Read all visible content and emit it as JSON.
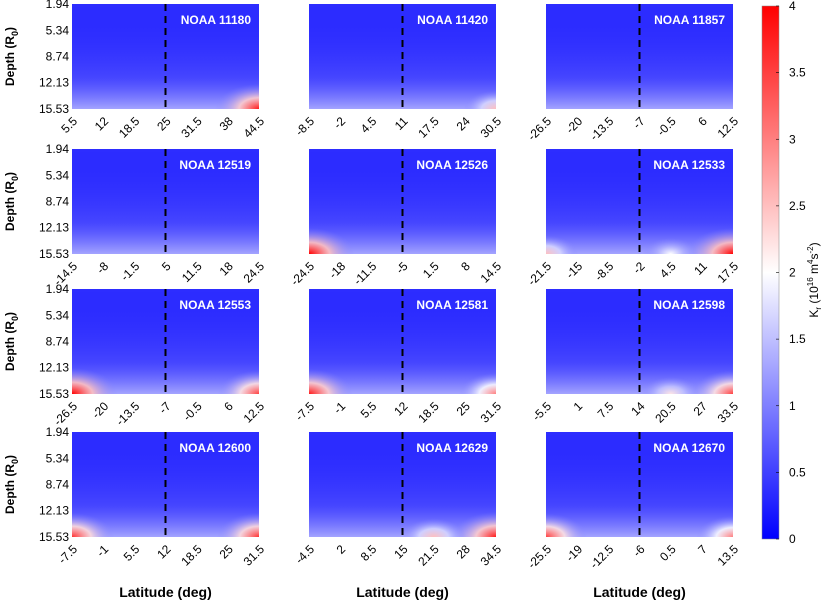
{
  "chart_data": {
    "type": "heatmap",
    "ylabel": "Depth (R",
    "ylabel_sub": "0",
    "ylabel_close": ")",
    "xlabel": "Latitude (deg)",
    "y_ticks": [
      "1.94",
      "5.34",
      "8.74",
      "12.13",
      "15.53"
    ],
    "colorbar": {
      "label": "K",
      "label_sub": "r",
      "label_units_open": " (10",
      "label_units_exp": "16",
      "label_units_mid": " m",
      "label_units_exp2": "4",
      "label_units_mid2": "s",
      "label_units_exp3": "-2",
      "label_units_close": ")",
      "range": [
        0,
        4
      ],
      "ticks": [
        "0",
        "0.5",
        "1",
        "1.5",
        "2",
        "2.5",
        "3",
        "3.5",
        "4"
      ],
      "colors": {
        "low": "#0000ff",
        "mid": "#ffffff",
        "high": "#ff0000"
      }
    },
    "panels": [
      {
        "title": "NOAA 11180",
        "x_ticks": [
          "5.5",
          "12",
          "18.5",
          "25",
          "31.5",
          "38",
          "44.5"
        ],
        "dashed_at": 25,
        "hotspots": [
          {
            "x": 44.5,
            "depth": 15.53,
            "value": 3.8
          }
        ]
      },
      {
        "title": "NOAA 11420",
        "x_ticks": [
          "-8.5",
          "-2",
          "4.5",
          "11",
          "17.5",
          "24",
          "30.5"
        ],
        "dashed_at": 11,
        "hotspots": [
          {
            "x": 30.5,
            "depth": 15.53,
            "value": 2.5
          }
        ]
      },
      {
        "title": "NOAA 11857",
        "x_ticks": [
          "-26.5",
          "-20",
          "-13.5",
          "-7",
          "-0.5",
          "6",
          "12.5"
        ],
        "dashed_at": -7,
        "hotspots": []
      },
      {
        "title": "NOAA 12519",
        "x_ticks": [
          "-14.5",
          "-8",
          "-1.5",
          "5",
          "11.5",
          "18",
          "24.5"
        ],
        "dashed_at": 5,
        "hotspots": []
      },
      {
        "title": "NOAA 12526",
        "x_ticks": [
          "-24.5",
          "-18",
          "-11.5",
          "-5",
          "1.5",
          "8",
          "14.5"
        ],
        "dashed_at": -5,
        "hotspots": [
          {
            "x": -24.5,
            "depth": 15.53,
            "value": 4.0
          }
        ]
      },
      {
        "title": "NOAA 12533",
        "x_ticks": [
          "-21.5",
          "-15",
          "-8.5",
          "-2",
          "4.5",
          "11",
          "17.5"
        ],
        "dashed_at": -2,
        "hotspots": [
          {
            "x": -21.5,
            "depth": 15.53,
            "value": 2.5
          },
          {
            "x": 17.5,
            "depth": 15.53,
            "value": 4.0
          },
          {
            "x": 4.5,
            "depth": 15.53,
            "value": 2.0
          }
        ]
      },
      {
        "title": "NOAA 12553",
        "x_ticks": [
          "-26.5",
          "-20",
          "-13.5",
          "-7",
          "-0.5",
          "6",
          "12.5"
        ],
        "dashed_at": -7,
        "hotspots": [
          {
            "x": -26.5,
            "depth": 15.53,
            "value": 4.0
          },
          {
            "x": 12.5,
            "depth": 15.53,
            "value": 3.5
          }
        ]
      },
      {
        "title": "NOAA 12581",
        "x_ticks": [
          "-7.5",
          "-1",
          "5.5",
          "12",
          "18.5",
          "25",
          "31.5"
        ],
        "dashed_at": 12,
        "hotspots": [
          {
            "x": -7.5,
            "depth": 15.53,
            "value": 3.8
          },
          {
            "x": 31.5,
            "depth": 15.53,
            "value": 3.0
          }
        ]
      },
      {
        "title": "NOAA 12598",
        "x_ticks": [
          "-5.5",
          "1",
          "7.5",
          "14",
          "20.5",
          "27",
          "33.5"
        ],
        "dashed_at": 14,
        "hotspots": [
          {
            "x": 33.5,
            "depth": 15.53,
            "value": 3.5
          },
          {
            "x": 20.5,
            "depth": 15.53,
            "value": 2.2
          }
        ]
      },
      {
        "title": "NOAA 12600",
        "x_ticks": [
          "-7.5",
          "-1",
          "5.5",
          "12",
          "18.5",
          "25",
          "31.5"
        ],
        "dashed_at": 12,
        "hotspots": [
          {
            "x": -7.5,
            "depth": 15.53,
            "value": 3.6
          },
          {
            "x": 31.5,
            "depth": 15.53,
            "value": 3.6
          }
        ]
      },
      {
        "title": "NOAA 12629",
        "x_ticks": [
          "-4.5",
          "2",
          "8.5",
          "15",
          "21.5",
          "28",
          "34.5"
        ],
        "dashed_at": 15,
        "hotspots": [
          {
            "x": 34.5,
            "depth": 15.53,
            "value": 3.8
          },
          {
            "x": 21.5,
            "depth": 15.53,
            "value": 2.5
          }
        ]
      },
      {
        "title": "NOAA 12670",
        "x_ticks": [
          "-25.5",
          "-19",
          "-12.5",
          "-6",
          "0.5",
          "7",
          "13.5"
        ],
        "dashed_at": -6,
        "hotspots": [
          {
            "x": -25.5,
            "depth": 15.53,
            "value": 3.5
          },
          {
            "x": 13.5,
            "depth": 15.53,
            "value": 3.0
          }
        ]
      }
    ]
  }
}
